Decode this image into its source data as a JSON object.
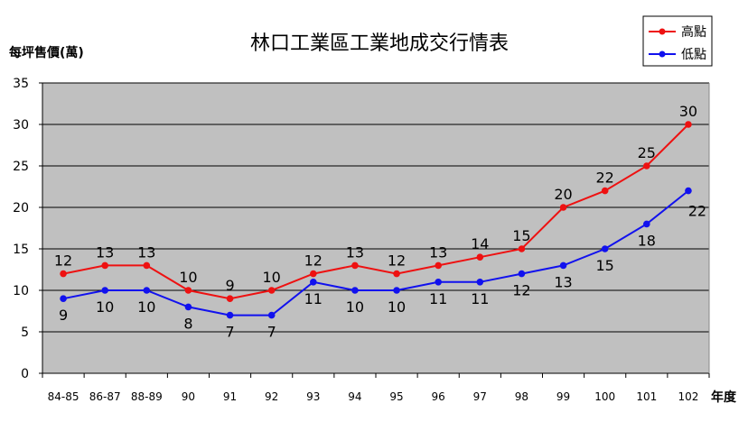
{
  "chart_data": {
    "type": "line",
    "title": "林口工業區工業地成交行情表",
    "ylabel": "每坪售價(萬)",
    "xlabel": "年度",
    "ylim": [
      0,
      35
    ],
    "yticks": [
      "0",
      "5",
      "10",
      "15",
      "20",
      "25",
      "30",
      "35"
    ],
    "categories": [
      "84-85",
      "86-87",
      "88-89",
      "90",
      "91",
      "92",
      "93",
      "94",
      "95",
      "96",
      "97",
      "98",
      "99",
      "100",
      "101",
      "102"
    ],
    "grid": true,
    "legend_position": "top-right",
    "series": [
      {
        "name": "高點",
        "color": "#ee1111",
        "values": [
          12,
          13,
          13,
          10,
          9,
          10,
          12,
          13,
          12,
          13,
          14,
          15,
          20,
          22,
          25,
          30
        ]
      },
      {
        "name": "低點",
        "color": "#1111ee",
        "values": [
          9,
          10,
          10,
          8,
          7,
          7,
          11,
          10,
          10,
          11,
          11,
          12,
          13,
          15,
          18,
          22
        ]
      }
    ]
  }
}
